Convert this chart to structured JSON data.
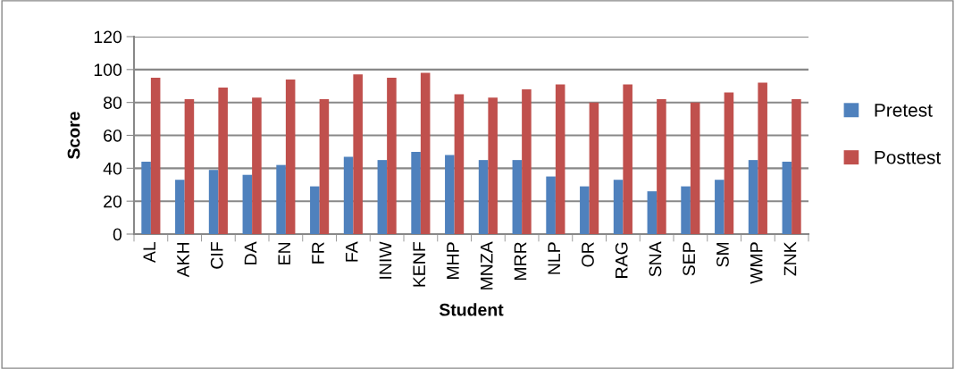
{
  "chart_data": {
    "type": "bar",
    "xlabel": "Student",
    "ylabel": "Score",
    "categories": [
      "AL",
      "AKH",
      "CIF",
      "DA",
      "EN",
      "FR",
      "FA",
      "INIW",
      "KENF",
      "MHP",
      "MNZA",
      "MRR",
      "NLP",
      "OR",
      "RAG",
      "SNA",
      "SEP",
      "SM",
      "WMP",
      "ZNK"
    ],
    "series": [
      {
        "name": "Pretest",
        "color": "#4f81bd",
        "values": [
          44,
          33,
          39,
          36,
          42,
          29,
          47,
          45,
          50,
          48,
          45,
          45,
          35,
          29,
          33,
          26,
          29,
          33,
          45,
          44
        ]
      },
      {
        "name": "Posttest",
        "color": "#c0504d",
        "values": [
          95,
          82,
          89,
          83,
          94,
          82,
          97,
          95,
          98,
          85,
          83,
          88,
          91,
          80,
          91,
          82,
          80,
          86,
          92,
          82
        ]
      }
    ],
    "ylim": [
      0,
      120
    ],
    "yticks": [
      0,
      20,
      40,
      60,
      80,
      100,
      120
    ],
    "grid": "y",
    "legend": "right"
  }
}
